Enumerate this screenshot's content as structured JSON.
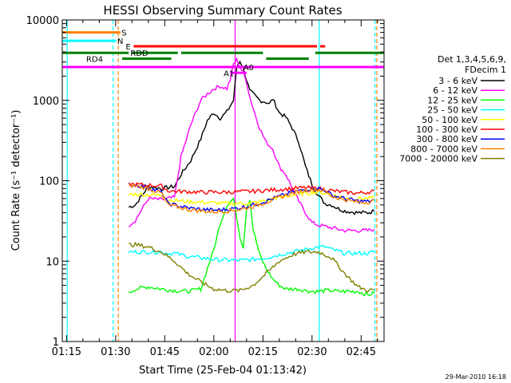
{
  "chart_data": {
    "type": "line",
    "title": "HESSI Observing Summary Count Rates",
    "xlabel": "Start Time (25-Feb-04 01:13:42)",
    "ylabel": "Count Rate (s⁻¹ detector⁻¹)",
    "timestamp": "29-Mar-2010 16:18",
    "y_scale": "log",
    "ylim": [
      1,
      10000
    ],
    "xlim": [
      "01:13:42",
      "02:52:00"
    ],
    "x_minutes_range": [
      73.7,
      172
    ],
    "x_ticks": [
      {
        "label": "01:15",
        "minutes": 75
      },
      {
        "label": "01:30",
        "minutes": 90
      },
      {
        "label": "01:45",
        "minutes": 105
      },
      {
        "label": "02:00",
        "minutes": 120
      },
      {
        "label": "02:15",
        "minutes": 135
      },
      {
        "label": "02:30",
        "minutes": 150
      },
      {
        "label": "02:45",
        "minutes": 165
      }
    ],
    "y_ticks": [
      {
        "label": "1",
        "value": 1
      },
      {
        "label": "10",
        "value": 10
      },
      {
        "label": "100",
        "value": 100
      },
      {
        "label": "1000",
        "value": 1000
      },
      {
        "label": "10000",
        "value": 10000
      }
    ],
    "legend": {
      "header": [
        "Det 1,3,4,5,6,9,",
        "FDecim 1"
      ],
      "placement": "right"
    },
    "series": [
      {
        "name": "3 - 6 keV",
        "color": "#000000",
        "x": [
          94,
          96,
          100,
          104,
          108,
          110,
          113,
          116,
          118,
          120,
          122,
          124,
          126,
          127,
          128,
          129,
          130,
          131,
          132,
          134,
          136,
          137,
          138,
          140,
          142,
          144,
          146,
          148,
          150,
          152,
          154,
          156,
          158,
          160,
          164,
          167,
          169
        ],
        "y": [
          47,
          50,
          85,
          80,
          85,
          120,
          180,
          330,
          560,
          700,
          600,
          720,
          1000,
          2600,
          3100,
          2500,
          1800,
          1300,
          1200,
          1000,
          950,
          900,
          1050,
          700,
          620,
          450,
          300,
          150,
          90,
          65,
          52,
          50,
          45,
          42,
          40,
          40,
          42
        ]
      },
      {
        "name": "6 - 12 keV",
        "color": "#ff00ff",
        "x": [
          94,
          96,
          100,
          104,
          108,
          110,
          113,
          116,
          118,
          120,
          122,
          124,
          125,
          126,
          127,
          128,
          129,
          130,
          131,
          132,
          134,
          136,
          138,
          140,
          142,
          144,
          146,
          148,
          150,
          152,
          154,
          156,
          158,
          160,
          164,
          167,
          169
        ],
        "y": [
          28,
          32,
          60,
          58,
          62,
          200,
          500,
          1000,
          1200,
          1400,
          1500,
          1400,
          1800,
          2800,
          3200,
          2600,
          2200,
          1700,
          1100,
          800,
          450,
          300,
          250,
          150,
          120,
          80,
          55,
          40,
          30,
          28,
          27,
          26,
          25,
          24,
          24,
          24,
          25
        ]
      },
      {
        "name": "12 - 25 keV",
        "color": "#00ff00",
        "x": [
          94,
          96,
          100,
          104,
          108,
          112,
          116,
          118,
          120,
          122,
          124,
          126,
          127,
          128,
          129,
          130,
          131,
          132,
          134,
          136,
          138,
          140,
          142,
          144,
          146,
          148,
          150,
          152,
          154,
          156,
          158,
          160,
          164,
          167,
          169
        ],
        "y": [
          4,
          4.5,
          4.8,
          4.5,
          4.3,
          4.2,
          4.5,
          8,
          14,
          30,
          50,
          60,
          35,
          20,
          15,
          45,
          60,
          25,
          12,
          8,
          6,
          5,
          4.5,
          4.5,
          4.5,
          4.3,
          4.2,
          4.2,
          4.3,
          4.3,
          4.2,
          4.2,
          4.2,
          3.8,
          4
        ]
      },
      {
        "name": "25 - 50 keV",
        "color": "#00ffff",
        "x": [
          94,
          96,
          100,
          104,
          106,
          108,
          112,
          116,
          120,
          124,
          128,
          132,
          136,
          140,
          144,
          148,
          152,
          154,
          156,
          160,
          164,
          167,
          169
        ],
        "y": [
          13,
          13,
          13,
          13,
          12.5,
          12.5,
          11.5,
          11,
          10.5,
          10.3,
          10.2,
          10.5,
          11,
          12,
          13,
          14,
          15,
          15,
          14,
          12.5,
          12.5,
          12.5,
          13
        ]
      },
      {
        "name": "50 - 100 keV",
        "color": "#ffff00",
        "x": [
          94,
          96,
          100,
          104,
          106,
          108,
          112,
          116,
          120,
          124,
          128,
          132,
          136,
          140,
          144,
          148,
          152,
          154,
          156,
          160,
          164,
          167,
          169
        ],
        "y": [
          68,
          68,
          67,
          66,
          58,
          57,
          55,
          54,
          53,
          52,
          52,
          53,
          57,
          62,
          66,
          70,
          72,
          70,
          66,
          62,
          60,
          60,
          62
        ]
      },
      {
        "name": "100 - 300 keV",
        "color": "#ff0000",
        "x": [
          94,
          96,
          100,
          104,
          106,
          108,
          112,
          116,
          120,
          124,
          128,
          132,
          136,
          140,
          144,
          148,
          152,
          154,
          156,
          160,
          164,
          167,
          169
        ],
        "y": [
          90,
          90,
          88,
          86,
          75,
          74,
          73,
          72,
          72,
          72,
          73,
          74,
          76,
          78,
          80,
          82,
          80,
          78,
          75,
          72,
          70,
          72,
          75
        ]
      },
      {
        "name": "300 - 800 keV",
        "color": "#0000ff",
        "x": [
          94,
          96,
          100,
          104,
          106,
          108,
          112,
          116,
          120,
          124,
          128,
          132,
          136,
          140,
          144,
          148,
          152,
          154,
          156,
          160,
          164,
          167,
          169
        ],
        "y": [
          88,
          88,
          82,
          72,
          52,
          50,
          46,
          44,
          43,
          44,
          46,
          50,
          56,
          64,
          72,
          78,
          80,
          76,
          66,
          60,
          56,
          55,
          58
        ]
      },
      {
        "name": "800 - 7000 keV",
        "color": "#ff8000",
        "x": [
          94,
          96,
          100,
          104,
          106,
          108,
          112,
          116,
          120,
          124,
          128,
          132,
          136,
          140,
          144,
          148,
          152,
          154,
          156,
          160,
          164,
          167,
          169
        ],
        "y": [
          87,
          86,
          80,
          70,
          50,
          48,
          44,
          42,
          41,
          42,
          44,
          48,
          54,
          62,
          70,
          76,
          78,
          74,
          64,
          58,
          54,
          54,
          57
        ]
      },
      {
        "name": "7000 - 20000 keV",
        "color": "#808000",
        "x": [
          94,
          96,
          100,
          104,
          108,
          112,
          116,
          120,
          124,
          128,
          132,
          136,
          140,
          144,
          148,
          152,
          154,
          156,
          160,
          164,
          167,
          169
        ],
        "y": [
          16,
          16,
          15,
          13,
          10,
          7,
          5.5,
          4.5,
          4.3,
          4.3,
          5,
          7,
          10,
          12,
          13,
          13,
          12,
          11,
          7,
          4.8,
          4.3,
          4.4
        ]
      }
    ],
    "flag_bars": [
      {
        "label": "S",
        "color": "#ff8000",
        "y": 7000,
        "segments": [
          [
            73.7,
            91.5
          ]
        ],
        "label_x": 91.8
      },
      {
        "label": "N",
        "color": "#00ffff",
        "y": 5500,
        "segments": [
          [
            73.7,
            90.2
          ]
        ],
        "label_x": 90.5
      },
      {
        "label": "E",
        "color": "#ff0000",
        "y": 4700,
        "segments": [
          [
            95.5,
            151.5
          ],
          [
            152.5,
            154
          ]
        ]
      },
      {
        "label": "RDD",
        "color": "#008000",
        "y": 3900,
        "segments": [
          [
            73.7,
            94
          ],
          [
            95,
            109
          ],
          [
            110,
            135
          ],
          [
            151,
            172
          ]
        ],
        "label_x": 94.5
      },
      {
        "label": "RD4",
        "color": "#008000",
        "y": 3300,
        "segments": [
          [
            92,
            107
          ],
          [
            136,
            149
          ]
        ],
        "label_x": 81
      },
      {
        "label": "",
        "color": "#ff00ff",
        "y": 2600,
        "segments": [
          [
            73.7,
            172
          ]
        ]
      },
      {
        "label": "A1",
        "color": "#ff00ff",
        "y": 2200,
        "segments": [
          [
            125,
            130
          ]
        ],
        "label_x": 123
      },
      {
        "label": "A0",
        "color": "#ff00ff",
        "y": 2600,
        "segments": [],
        "label_x": 129
      }
    ],
    "vlines": [
      {
        "minutes": 75.2,
        "color": "#00ffff",
        "style": "solid"
      },
      {
        "minutes": 89.2,
        "color": "#00ffff",
        "style": "dashed"
      },
      {
        "minutes": 90.8,
        "color": "#ff8000",
        "style": "dashed"
      },
      {
        "minutes": 126.5,
        "color": "#ff00ff",
        "style": "solid"
      },
      {
        "minutes": 152.2,
        "color": "#00ffff",
        "style": "solid"
      },
      {
        "minutes": 169.2,
        "color": "#00ffff",
        "style": "dashed"
      },
      {
        "minutes": 169.8,
        "color": "#ff8000",
        "style": "dashed"
      }
    ]
  }
}
